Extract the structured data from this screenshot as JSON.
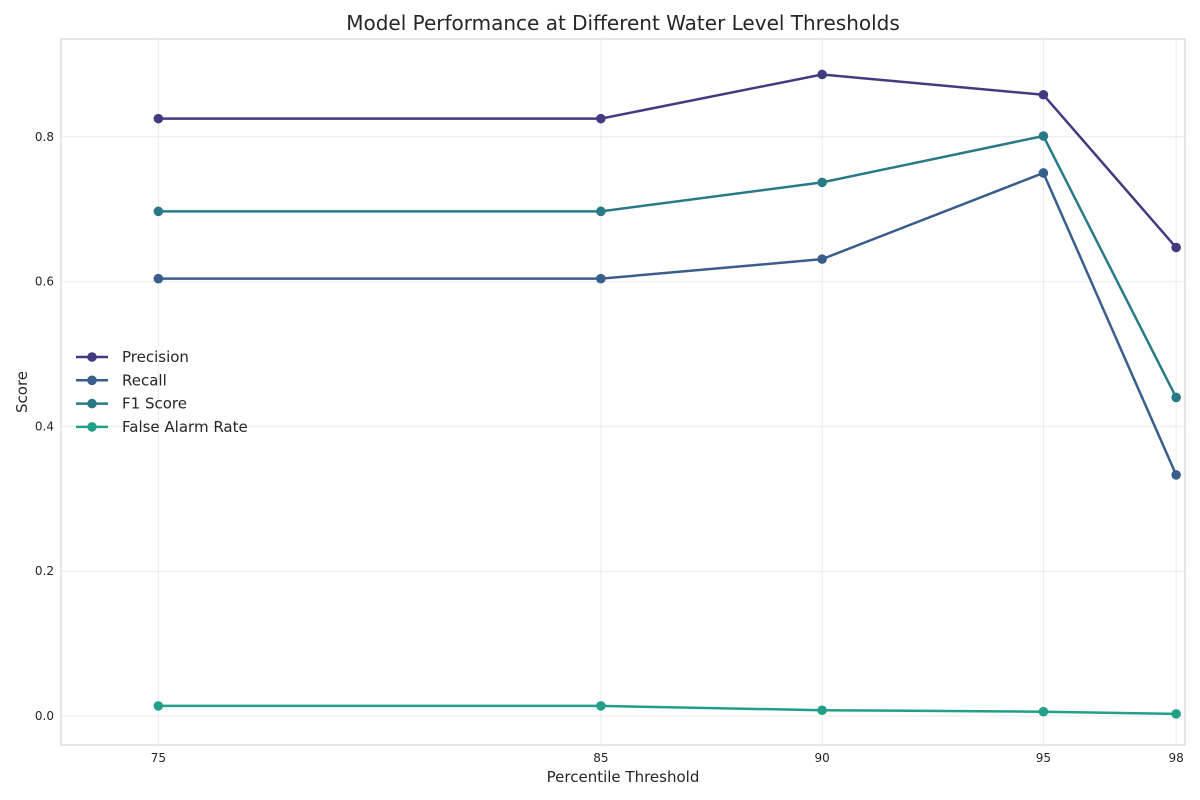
{
  "chart_data": {
    "type": "line",
    "title": "Model Performance at Different Water Level Thresholds",
    "xlabel": "Percentile Threshold",
    "ylabel": "Score",
    "x": [
      75,
      85,
      90,
      95,
      98
    ],
    "xlim": [
      72.8,
      98.2
    ],
    "ylim": [
      -0.04,
      0.935
    ],
    "yticks": [
      0.0,
      0.2,
      0.4,
      0.6,
      0.8
    ],
    "ytick_labels": [
      "0.0",
      "0.2",
      "0.4",
      "0.6",
      "0.8"
    ],
    "xtick_labels": [
      "75",
      "85",
      "90",
      "95",
      "98"
    ],
    "grid": true,
    "legend_position": "center-left",
    "series": [
      {
        "name": "Precision",
        "color": "#433b80",
        "values": [
          0.825,
          0.825,
          0.886,
          0.858,
          0.647
        ]
      },
      {
        "name": "Recall",
        "color": "#3a5e8c",
        "values": [
          0.604,
          0.604,
          0.631,
          0.75,
          0.333
        ]
      },
      {
        "name": "F1 Score",
        "color": "#287a87",
        "values": [
          0.697,
          0.697,
          0.737,
          0.801,
          0.44
        ]
      },
      {
        "name": "False Alarm Rate",
        "color": "#229f88",
        "values": [
          0.014,
          0.014,
          0.008,
          0.006,
          0.003
        ]
      }
    ]
  }
}
